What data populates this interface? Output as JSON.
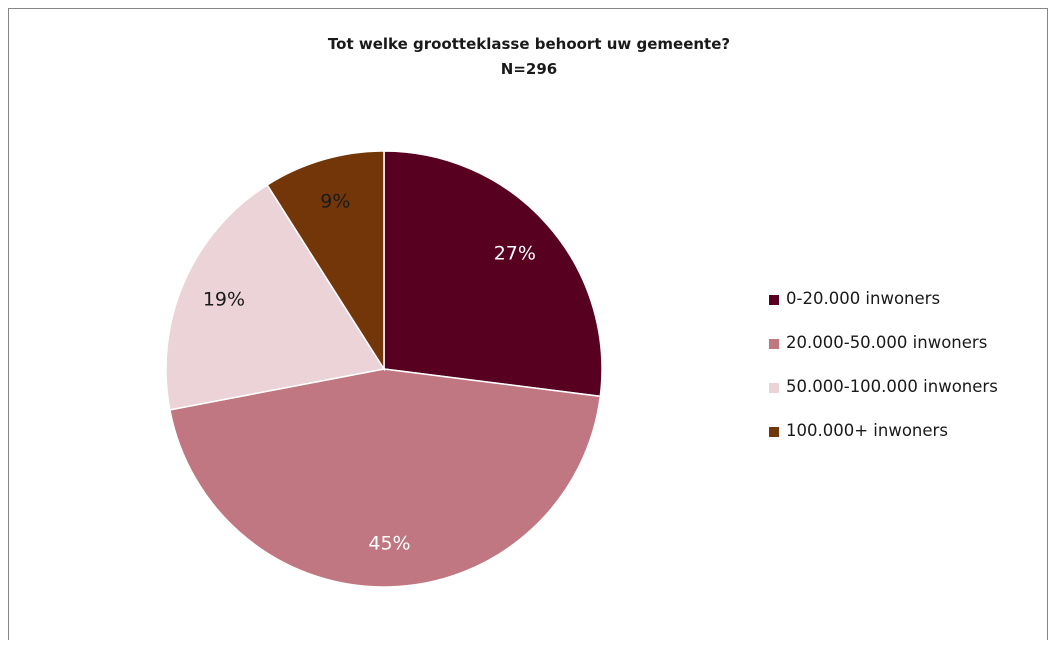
{
  "chart_data": {
    "type": "pie",
    "title": "Tot welke grootteklasse behoort uw gemeente?",
    "subtitle": "N=296",
    "categories": [
      "0-20.000 inwoners",
      "20.000-50.000 inwoners",
      "50.000-100.000 inwoners",
      "100.000+ inwoners"
    ],
    "values": [
      27,
      45,
      19,
      9
    ],
    "labels": [
      "27%",
      "45%",
      "19%",
      "9%"
    ],
    "colors": [
      "#570020",
      "#c07782",
      "#ebd3d7",
      "#733608"
    ],
    "label_colors": [
      "#ffffff",
      "#ffffff",
      "#1a1a1a",
      "#1a1a1a"
    ],
    "legend_position": "right"
  }
}
